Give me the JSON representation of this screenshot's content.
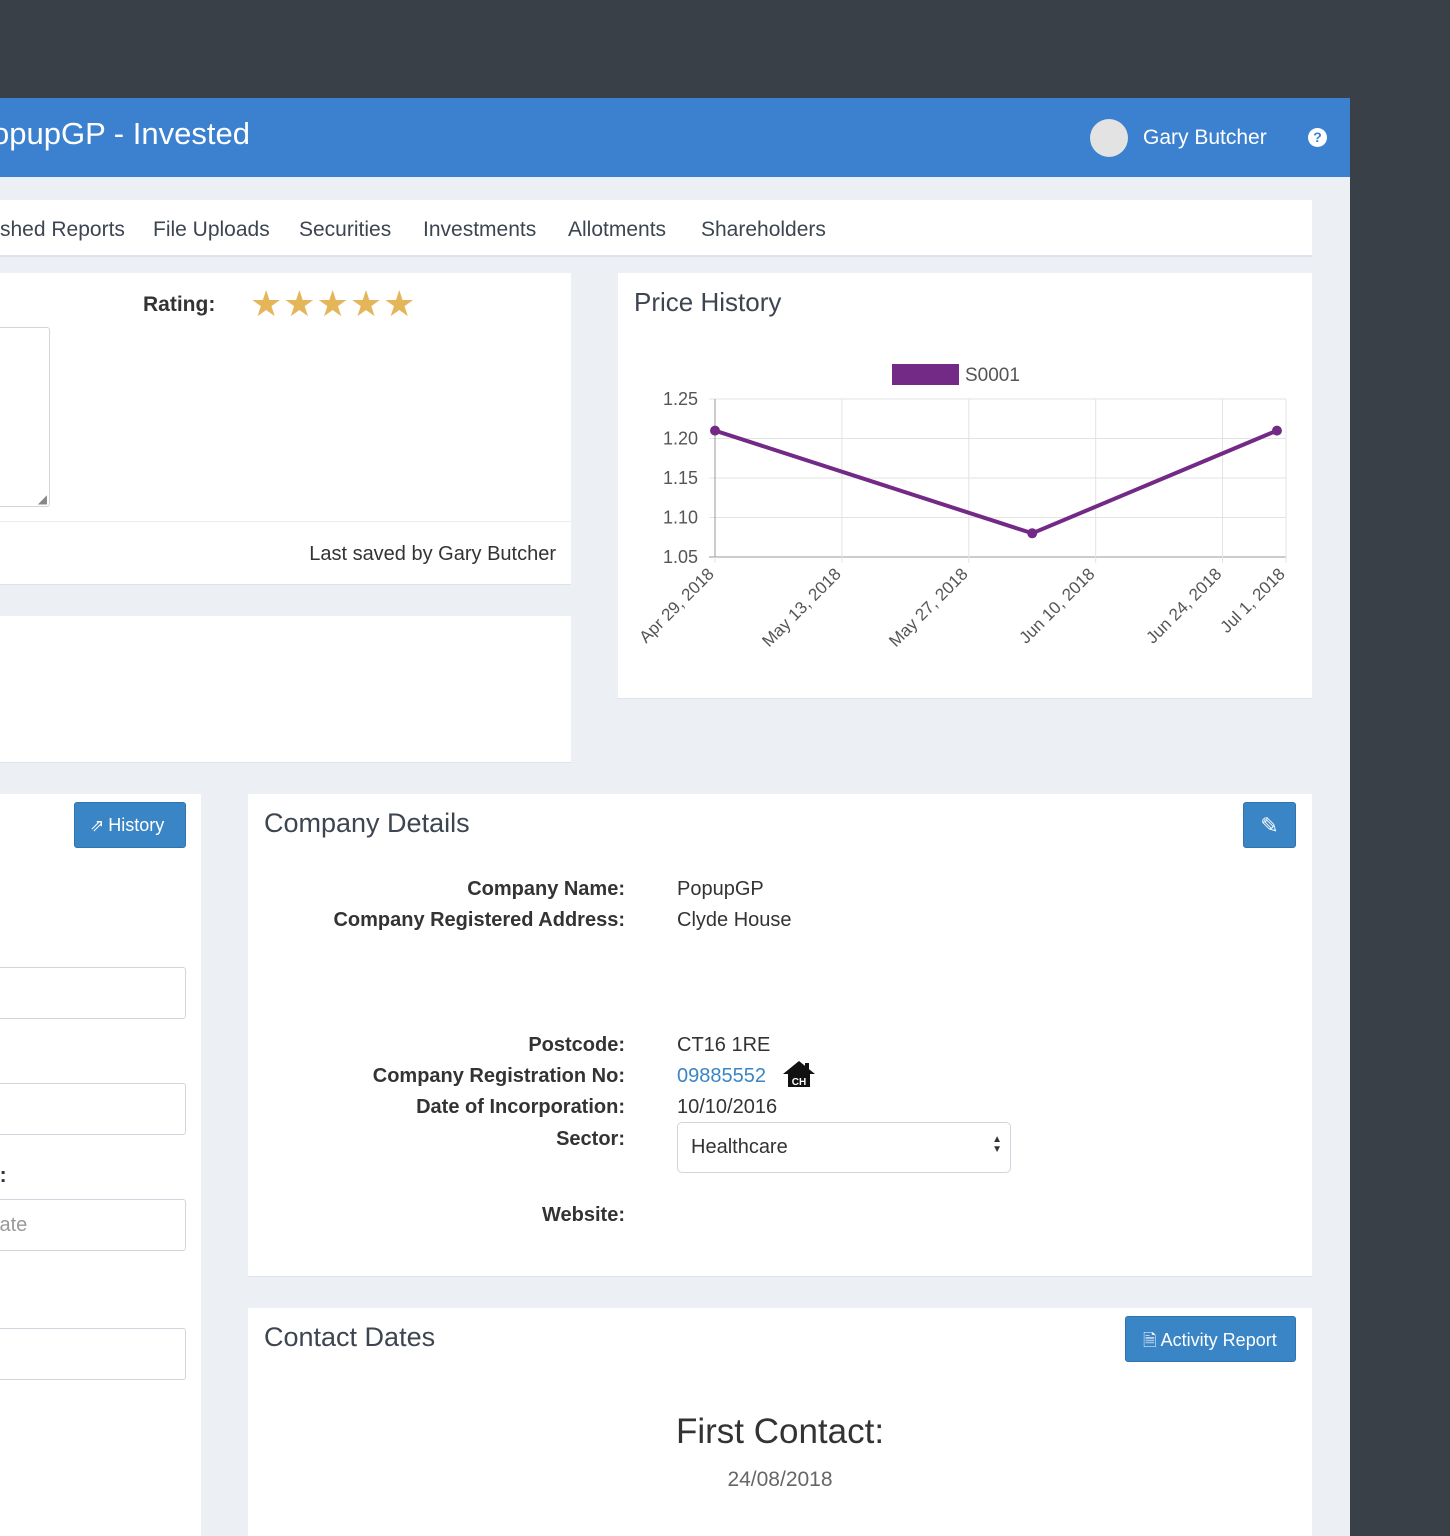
{
  "app": {
    "title": "opupGP - Invested"
  },
  "user": {
    "name": "Gary Butcher"
  },
  "icons": {
    "help": "question-circle-icon",
    "external_link": "external-link-icon",
    "edit": "edit-icon",
    "report": "file-report-icon",
    "companies_house": "house-icon"
  },
  "tabs": [
    {
      "label": "shed Reports"
    },
    {
      "label": "File Uploads"
    },
    {
      "label": "Securities"
    },
    {
      "label": "Investments"
    },
    {
      "label": "Allotments"
    },
    {
      "label": "Shareholders"
    }
  ],
  "notes": {
    "rating_label": "Rating:",
    "rating": 5,
    "rating_max": 5,
    "stars_text": "★★★★★",
    "last_saved": "Last saved by Gary Butcher"
  },
  "price_history": {
    "title": "Price History"
  },
  "chart_data": {
    "type": "line",
    "title": "Price History",
    "x": [
      "Apr 29, 2018",
      "Jun 3, 2018",
      "Jun 30, 2018"
    ],
    "x_ticks": [
      "Apr 29, 2018",
      "May 13, 2018",
      "May 27, 2018",
      "Jun 10, 2018",
      "Jun 24, 2018",
      "Jul 1, 2018"
    ],
    "y_ticks": [
      "1.25",
      "1.20",
      "1.15",
      "1.10",
      "1.05"
    ],
    "series": [
      {
        "name": "S0001",
        "values": [
          1.21,
          1.08,
          1.21
        ],
        "color": "#722a86"
      }
    ],
    "ylim": [
      1.05,
      1.25
    ],
    "grid": true,
    "legend": "top-center",
    "xlabel": "",
    "ylabel": ""
  },
  "left_panel": {
    "history_button": "History",
    "field_label": "e:",
    "date_placeholder": "Date"
  },
  "company": {
    "title": "Company Details",
    "labels": {
      "name": "Company Name:",
      "address": "Company Registered Address:",
      "postcode": "Postcode:",
      "reg_no": "Company Registration No:",
      "incorporation": "Date of Incorporation:",
      "sector": "Sector:",
      "website": "Website:"
    },
    "values": {
      "name": "PopupGP",
      "address": "Clyde House",
      "postcode": "CT16 1RE",
      "reg_no": "09885552",
      "incorporation": "10/10/2016",
      "sector": "Healthcare",
      "house_badge": "CH"
    }
  },
  "contact": {
    "title": "Contact Dates",
    "activity_button": "Activity Report",
    "first_contact_label": "First Contact:",
    "first_contact_date": "24/08/2018"
  }
}
